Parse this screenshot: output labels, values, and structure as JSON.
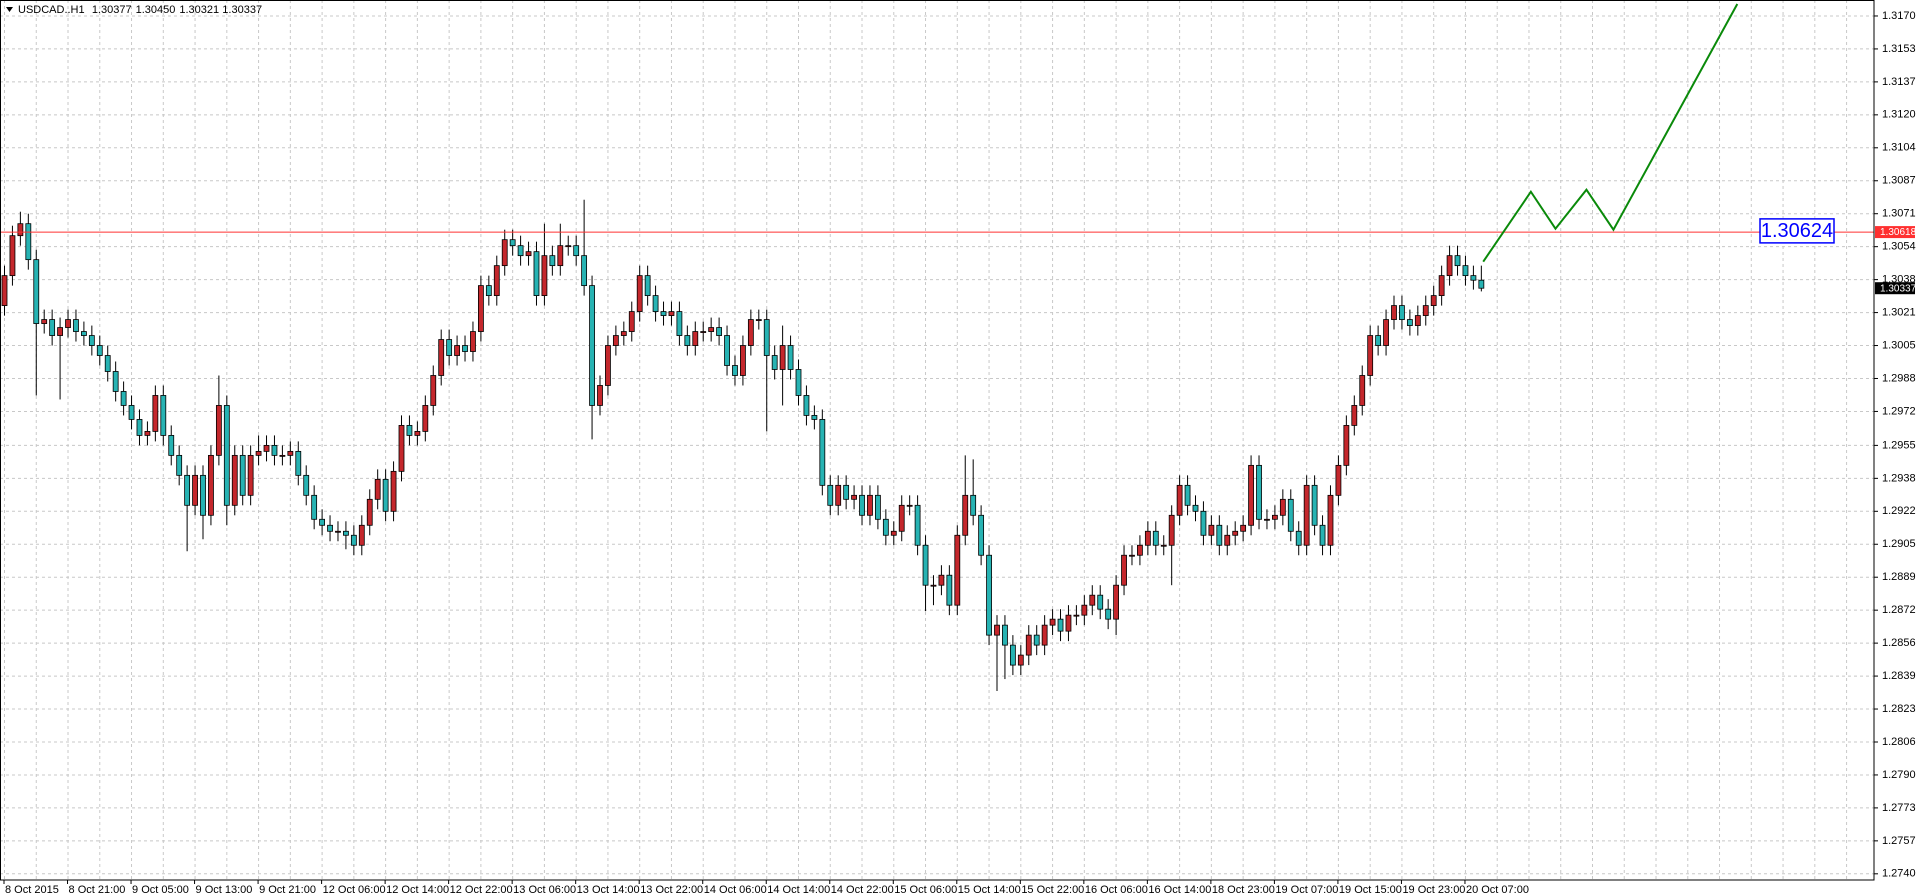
{
  "chart_data": {
    "type": "candlestick",
    "title": "USDCAD..H1",
    "title_values": [
      "1.30377",
      "1.30450",
      "1.30321",
      "1.30337"
    ],
    "categories": [
      "8 Oct 2015",
      null,
      null,
      null,
      null,
      null,
      null,
      null,
      "8 Oct 21:00",
      null,
      null,
      null,
      null,
      null,
      null,
      null,
      "9 Oct 05:00",
      null,
      null,
      null,
      null,
      null,
      null,
      null,
      "9 Oct 13:00",
      null,
      null,
      null,
      null,
      null,
      null,
      null,
      "9 Oct 21:00",
      null,
      null,
      null,
      null,
      null,
      null,
      null,
      "12 Oct 06:00",
      null,
      null,
      null,
      null,
      null,
      null,
      null,
      "12 Oct 14:00",
      null,
      null,
      null,
      null,
      null,
      null,
      null,
      "12 Oct 22:00",
      null,
      null,
      null,
      null,
      null,
      null,
      null,
      "13 Oct 06:00",
      null,
      null,
      null,
      null,
      null,
      null,
      null,
      "13 Oct 14:00",
      null,
      null,
      null,
      null,
      null,
      null,
      null,
      "13 Oct 22:00",
      null,
      null,
      null,
      null,
      null,
      null,
      null,
      "14 Oct 06:00",
      null,
      null,
      null,
      null,
      null,
      null,
      null,
      "14 Oct 14:00",
      null,
      null,
      null,
      null,
      null,
      null,
      null,
      "14 Oct 22:00",
      null,
      null,
      null,
      null,
      null,
      null,
      null,
      "15 Oct 06:00",
      null,
      null,
      null,
      null,
      null,
      null,
      null,
      "15 Oct 14:00",
      null,
      null,
      null,
      null,
      null,
      null,
      null,
      "15 Oct 22:00",
      null,
      null,
      null,
      null,
      null,
      null,
      null,
      "16 Oct 06:00",
      null,
      null,
      null,
      null,
      null,
      null,
      null,
      "16 Oct 14:00",
      null,
      null,
      null,
      null,
      null,
      null,
      null,
      "18 Oct 23:00",
      null,
      null,
      null,
      null,
      null,
      null,
      null,
      "19 Oct 07:00",
      null,
      null,
      null,
      null,
      null,
      null,
      null,
      "19 Oct 15:00",
      null,
      null,
      null,
      null,
      null,
      null,
      null,
      "19 Oct 23:00",
      null,
      null,
      null,
      null,
      null,
      null,
      null,
      "20 Oct 07:00",
      null,
      null
    ],
    "open": [
      1.3025,
      1.304,
      1.306,
      1.3066,
      1.3048,
      1.3016,
      1.3018,
      1.301,
      1.3014,
      1.3018,
      1.3012,
      1.301,
      1.3005,
      1.3,
      1.2992,
      1.2982,
      1.2975,
      1.2968,
      1.296,
      1.2962,
      1.298,
      1.296,
      1.295,
      1.294,
      1.2925,
      1.294,
      1.292,
      1.295,
      1.2975,
      1.2925,
      1.295,
      1.293,
      1.295,
      1.2952,
      1.2955,
      1.295,
      1.295,
      1.2952,
      1.294,
      1.293,
      1.2918,
      1.2915,
      1.2912,
      1.2912,
      1.291,
      1.2905,
      1.2915,
      1.2928,
      1.2938,
      1.2922,
      1.2942,
      1.2965,
      1.296,
      1.2962,
      1.2975,
      1.299,
      1.3008,
      1.3,
      1.3005,
      1.3002,
      1.3012,
      1.3035,
      1.303,
      1.3045,
      1.3058,
      1.3055,
      1.305,
      1.3052,
      1.303,
      1.305,
      1.3045,
      1.3055,
      1.3055,
      1.305,
      1.3035,
      1.2975,
      1.2985,
      1.3005,
      1.301,
      1.3012,
      1.3022,
      1.304,
      1.303,
      1.3022,
      1.302,
      1.3022,
      1.301,
      1.3005,
      1.3012,
      1.3012,
      1.3014,
      1.301,
      1.2995,
      1.299,
      1.3005,
      1.3018,
      1.3018,
      1.3,
      1.2993,
      1.3005,
      1.2993,
      1.298,
      1.297,
      1.2968,
      1.2935,
      1.2925,
      1.2935,
      1.2928,
      1.293,
      1.292,
      1.293,
      1.2918,
      1.291,
      1.2912,
      1.2925,
      1.2925,
      1.2905,
      1.2885,
      1.2885,
      1.289,
      1.2875,
      1.291,
      1.293,
      1.292,
      1.29,
      1.286,
      1.2865,
      1.2855,
      1.2845,
      1.285,
      1.286,
      1.2855,
      1.2865,
      1.2868,
      1.2862,
      1.287,
      1.287,
      1.2875,
      1.288,
      1.2873,
      1.2868,
      1.2885,
      1.29,
      1.29,
      1.2905,
      1.2912,
      1.2905,
      1.2905,
      1.292,
      1.2935,
      1.2925,
      1.2922,
      1.291,
      1.2915,
      1.2905,
      1.291,
      1.2912,
      1.2915,
      1.2945,
      1.2918,
      1.2918,
      1.292,
      1.2928,
      1.2912,
      1.2905,
      1.2935,
      1.2915,
      1.2905,
      1.293,
      1.2945,
      1.2965,
      1.2975,
      1.299,
      1.301,
      1.3005,
      1.3018,
      1.3025,
      1.3018,
      1.3015,
      1.302,
      1.3025,
      1.303,
      1.304,
      1.305,
      1.3045,
      1.304,
      1.30377
    ],
    "high": [
      1.3045,
      1.3065,
      1.3072,
      1.3071,
      1.3053,
      1.3023,
      1.3023,
      1.3019,
      1.3023,
      1.3023,
      1.3017,
      1.3015,
      1.301,
      1.3005,
      1.2997,
      1.2987,
      1.298,
      1.2973,
      1.2967,
      1.2985,
      1.2985,
      1.2965,
      1.2955,
      1.2945,
      1.2945,
      1.2945,
      1.2955,
      1.299,
      1.298,
      1.2955,
      1.2955,
      1.2955,
      1.296,
      1.296,
      1.296,
      1.2955,
      1.2957,
      1.2957,
      1.2945,
      1.2935,
      1.2923,
      1.292,
      1.2917,
      1.2917,
      1.2915,
      1.292,
      1.2933,
      1.2943,
      1.2943,
      1.2947,
      1.297,
      1.297,
      1.2967,
      1.298,
      1.2995,
      1.3013,
      1.3013,
      1.301,
      1.301,
      1.3017,
      1.304,
      1.304,
      1.305,
      1.3063,
      1.3063,
      1.306,
      1.3057,
      1.3057,
      1.3066,
      1.3055,
      1.3066,
      1.306,
      1.306,
      1.3078,
      1.304,
      1.299,
      1.301,
      1.3015,
      1.3017,
      1.3027,
      1.3045,
      1.3045,
      1.3035,
      1.3027,
      1.3027,
      1.3027,
      1.3015,
      1.3017,
      1.3017,
      1.3019,
      1.3019,
      1.3015,
      1.3,
      1.301,
      1.3023,
      1.3023,
      1.3023,
      1.3005,
      1.3015,
      1.301,
      1.2998,
      1.2985,
      1.2975,
      1.2973,
      1.294,
      1.294,
      1.294,
      1.2935,
      1.2935,
      1.2935,
      1.2935,
      1.2923,
      1.2917,
      1.293,
      1.293,
      1.293,
      1.291,
      1.289,
      1.2895,
      1.2895,
      1.2915,
      1.295,
      1.2948,
      1.2925,
      1.2905,
      1.287,
      1.287,
      1.286,
      1.2855,
      1.2865,
      1.2865,
      1.287,
      1.2873,
      1.2873,
      1.2875,
      1.2875,
      1.288,
      1.2885,
      1.2885,
      1.2878,
      1.289,
      1.2905,
      1.2905,
      1.291,
      1.2917,
      1.2917,
      1.291,
      1.2925,
      1.294,
      1.294,
      1.293,
      1.2927,
      1.292,
      1.292,
      1.2915,
      1.2917,
      1.292,
      1.295,
      1.295,
      1.2923,
      1.2925,
      1.2933,
      1.2933,
      1.2917,
      1.294,
      1.294,
      1.292,
      1.2935,
      1.295,
      1.297,
      1.298,
      1.2995,
      1.3015,
      1.3015,
      1.3023,
      1.303,
      1.303,
      1.3023,
      1.3025,
      1.303,
      1.3035,
      1.3045,
      1.3055,
      1.3055,
      1.305,
      1.3045,
      1.3045
    ],
    "low": [
      1.302,
      1.3035,
      1.3055,
      1.3043,
      1.298,
      1.3011,
      1.3005,
      1.2978,
      1.3009,
      1.3007,
      1.3005,
      1.3,
      1.2995,
      1.2987,
      1.2977,
      1.297,
      1.2963,
      1.2955,
      1.2955,
      1.2957,
      1.2955,
      1.2945,
      1.2935,
      1.2902,
      1.292,
      1.2908,
      1.2915,
      1.2945,
      1.2915,
      1.292,
      1.2925,
      1.2925,
      1.2945,
      1.2947,
      1.2945,
      1.2945,
      1.2945,
      1.2935,
      1.2925,
      1.2913,
      1.291,
      1.2907,
      1.2907,
      1.2903,
      1.29,
      1.29,
      1.291,
      1.2923,
      1.2917,
      1.2917,
      1.2937,
      1.2955,
      1.2955,
      1.2957,
      1.297,
      1.2985,
      1.2995,
      1.2995,
      1.2997,
      1.2997,
      1.3007,
      1.3025,
      1.3025,
      1.304,
      1.305,
      1.3045,
      1.3045,
      1.3025,
      1.3025,
      1.304,
      1.304,
      1.305,
      1.3045,
      1.303,
      1.2958,
      1.297,
      1.298,
      1.3,
      1.3005,
      1.3007,
      1.3017,
      1.3025,
      1.3017,
      1.3015,
      1.3015,
      1.3005,
      1.3,
      1.3,
      1.3007,
      1.3007,
      1.3005,
      1.299,
      1.2985,
      1.2985,
      1.3,
      1.3013,
      1.2962,
      1.2988,
      1.2975,
      1.2988,
      1.2975,
      1.2965,
      1.2963,
      1.293,
      1.292,
      1.292,
      1.2923,
      1.2923,
      1.2915,
      1.2915,
      1.2913,
      1.2905,
      1.2905,
      1.2907,
      1.292,
      1.29,
      1.2872,
      1.2875,
      1.288,
      1.287,
      1.287,
      1.2905,
      1.2915,
      1.2895,
      1.2855,
      1.2832,
      1.2838,
      1.284,
      1.284,
      1.2845,
      1.285,
      1.285,
      1.286,
      1.2857,
      1.2857,
      1.2865,
      1.2865,
      1.287,
      1.2868,
      1.2863,
      1.286,
      1.288,
      1.2895,
      1.2895,
      1.29,
      1.29,
      1.29,
      1.2885,
      1.2915,
      1.292,
      1.2917,
      1.2905,
      1.2905,
      1.29,
      1.29,
      1.2905,
      1.2907,
      1.291,
      1.2913,
      1.2913,
      1.2913,
      1.2915,
      1.2907,
      1.29,
      1.29,
      1.291,
      1.29,
      1.29,
      1.2925,
      1.294,
      1.296,
      1.297,
      1.2985,
      1.3,
      1.3,
      1.3013,
      1.3013,
      1.301,
      1.301,
      1.3015,
      1.302,
      1.3025,
      1.3035,
      1.304,
      1.3035,
      1.3033,
      1.30321
    ],
    "close": [
      1.304,
      1.306,
      1.3066,
      1.3048,
      1.3016,
      1.3018,
      1.301,
      1.3014,
      1.3018,
      1.3012,
      1.301,
      1.3005,
      1.3,
      1.2992,
      1.2982,
      1.2975,
      1.2968,
      1.296,
      1.2962,
      1.298,
      1.296,
      1.295,
      1.294,
      1.2925,
      1.294,
      1.292,
      1.295,
      1.2975,
      1.2925,
      1.295,
      1.293,
      1.295,
      1.2952,
      1.2955,
      1.295,
      1.295,
      1.2952,
      1.294,
      1.293,
      1.2918,
      1.2915,
      1.2912,
      1.2912,
      1.291,
      1.2905,
      1.2915,
      1.2928,
      1.2938,
      1.2922,
      1.2942,
      1.2965,
      1.296,
      1.2962,
      1.2975,
      1.299,
      1.3008,
      1.3,
      1.3005,
      1.3002,
      1.3012,
      1.3035,
      1.303,
      1.3045,
      1.3058,
      1.3055,
      1.305,
      1.3052,
      1.303,
      1.305,
      1.3045,
      1.3055,
      1.3055,
      1.305,
      1.3035,
      1.2975,
      1.2985,
      1.3005,
      1.301,
      1.3012,
      1.3022,
      1.304,
      1.303,
      1.3022,
      1.302,
      1.3022,
      1.301,
      1.3005,
      1.3012,
      1.3012,
      1.3014,
      1.301,
      1.2995,
      1.299,
      1.3005,
      1.3018,
      1.3018,
      1.3,
      1.2993,
      1.3005,
      1.2993,
      1.298,
      1.297,
      1.2968,
      1.2935,
      1.2925,
      1.2935,
      1.2928,
      1.293,
      1.292,
      1.293,
      1.2918,
      1.291,
      1.2912,
      1.2925,
      1.2925,
      1.2905,
      1.2885,
      1.2885,
      1.289,
      1.2875,
      1.291,
      1.293,
      1.292,
      1.29,
      1.286,
      1.2865,
      1.2855,
      1.2845,
      1.285,
      1.286,
      1.2855,
      1.2865,
      1.2868,
      1.2862,
      1.287,
      1.287,
      1.2875,
      1.288,
      1.2873,
      1.2868,
      1.2885,
      1.29,
      1.29,
      1.2905,
      1.2912,
      1.2905,
      1.2905,
      1.292,
      1.2935,
      1.2925,
      1.2922,
      1.291,
      1.2915,
      1.2905,
      1.291,
      1.2912,
      1.2915,
      1.2945,
      1.2918,
      1.2918,
      1.292,
      1.2928,
      1.2912,
      1.2905,
      1.2935,
      1.2915,
      1.2905,
      1.293,
      1.2945,
      1.2965,
      1.2975,
      1.299,
      1.301,
      1.3005,
      1.3018,
      1.3025,
      1.3018,
      1.3015,
      1.302,
      1.3025,
      1.303,
      1.304,
      1.305,
      1.3045,
      1.304,
      1.30377,
      1.30337
    ],
    "up_color": "#c4272c",
    "down_color": "#27b3b3",
    "ylim": [
      1.27374,
      1.3178
    ],
    "yticks": [
      {
        "value": 1.317,
        "label": "1.31700"
      },
      {
        "value": 1.31535,
        "label": "1.31535"
      },
      {
        "value": 1.3137,
        "label": "1.31370"
      },
      {
        "value": 1.31205,
        "label": "1.31205"
      },
      {
        "value": 1.3104,
        "label": "1.31040"
      },
      {
        "value": 1.30875,
        "label": "1.30875"
      },
      {
        "value": 1.3071,
        "label": "1.30710"
      },
      {
        "value": 1.30545,
        "label": "1.30545"
      },
      {
        "value": 1.3038,
        "label": "1.30380"
      },
      {
        "value": 1.30215,
        "label": "1.30215"
      },
      {
        "value": 1.3005,
        "label": "1.30050"
      },
      {
        "value": 1.29885,
        "label": "1.29885"
      },
      {
        "value": 1.2972,
        "label": "1.29720"
      },
      {
        "value": 1.2955,
        "label": "1.29550"
      },
      {
        "value": 1.29385,
        "label": "1.29385"
      },
      {
        "value": 1.2922,
        "label": "1.29220"
      },
      {
        "value": 1.29055,
        "label": "1.29055"
      },
      {
        "value": 1.2889,
        "label": "1.28890"
      },
      {
        "value": 1.28725,
        "label": "1.28725"
      },
      {
        "value": 1.2856,
        "label": "1.28560"
      },
      {
        "value": 1.28395,
        "label": "1.28395"
      },
      {
        "value": 1.2823,
        "label": "1.28230"
      },
      {
        "value": 1.28065,
        "label": "1.28065"
      },
      {
        "value": 1.279,
        "label": "1.27900"
      },
      {
        "value": 1.27735,
        "label": "1.27735"
      },
      {
        "value": 1.2757,
        "label": "1.27570"
      },
      {
        "value": 1.27405,
        "label": "1.27405"
      }
    ],
    "grid": true,
    "hlines": [
      {
        "value": 1.30618,
        "label": "1.30618",
        "color": "#ff3030"
      }
    ],
    "price_label": {
      "value": 1.30624,
      "label": "1.30624",
      "color": "#0000ff"
    },
    "current_price": {
      "value": 1.30337,
      "label": "1.30337"
    },
    "forecast": {
      "color": "#0a8a0a",
      "x": [
        186.3,
        192.3,
        195.4,
        199.3,
        202.7,
        218.3
      ],
      "y": [
        1.3047,
        1.3082,
        1.30635,
        1.3083,
        1.3063,
        1.3176
      ]
    }
  }
}
